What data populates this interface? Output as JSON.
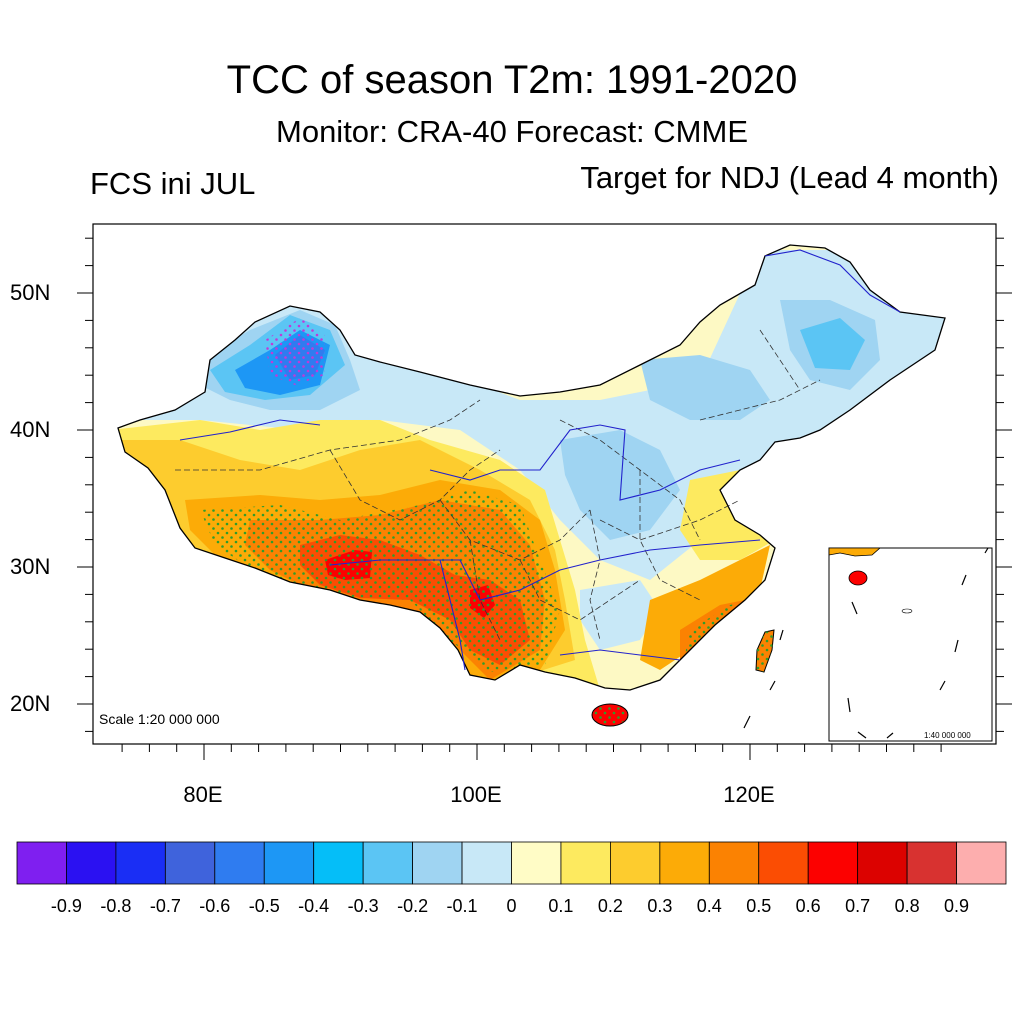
{
  "header": {
    "title": "TCC of season T2m: 1991-2020",
    "subtitle": "Monitor: CRA-40   Forecast: CMME",
    "left_label": "FCS ini JUL",
    "right_label": "Target for NDJ (Lead 4 month)"
  },
  "map": {
    "lat_ticks": [
      {
        "label": "50N",
        "lat": 50
      },
      {
        "label": "40N",
        "lat": 40
      },
      {
        "label": "30N",
        "lat": 30
      },
      {
        "label": "20N",
        "lat": 20
      }
    ],
    "lon_ticks": [
      {
        "label": "80E",
        "lon": 80
      },
      {
        "label": "100E",
        "lon": 100
      },
      {
        "label": "120E",
        "lon": 120
      }
    ],
    "scale_label": "Scale 1:20 000 000",
    "inset_scale_label": "1:40 000 000"
  },
  "colorbar": {
    "colors": [
      "#7f1ff0",
      "#2b11f2",
      "#1a2ef5",
      "#3f63dc",
      "#2f7cf0",
      "#1d97f5",
      "#05bef8",
      "#5bc5f4",
      "#9fd4f2",
      "#c8e8f7",
      "#fffcc6",
      "#fdea5f",
      "#fdcc2e",
      "#fcab07",
      "#fb8202",
      "#fb4d03",
      "#fc0100",
      "#dc0200",
      "#d83230",
      "#fdaeae"
    ],
    "labels": [
      "-0.9",
      "-0.8",
      "-0.7",
      "-0.6",
      "-0.5",
      "-0.4",
      "-0.3",
      "-0.2",
      "-0.1",
      "0",
      "0.1",
      "0.2",
      "0.3",
      "0.4",
      "0.5",
      "0.6",
      "0.7",
      "0.8",
      "0.9"
    ]
  }
}
